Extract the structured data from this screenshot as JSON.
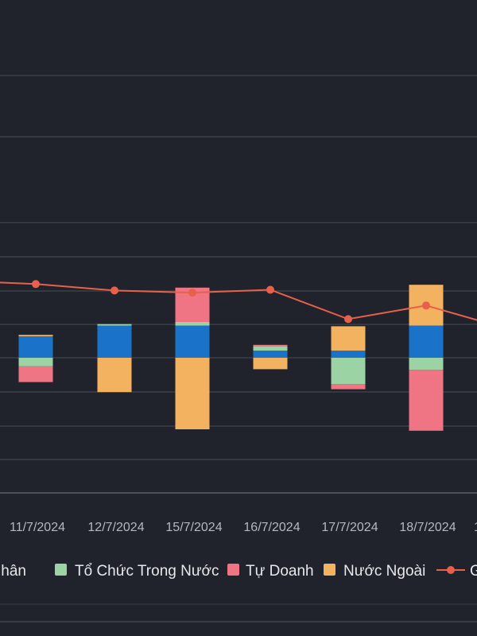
{
  "chart_data": {
    "type": "bar",
    "categories": [
      "11/7/2024",
      "12/7/2024",
      "15/7/2024",
      "16/7/2024",
      "17/7/2024",
      "18/7/2024"
    ],
    "series": [
      {
        "name": "Cá Nhân",
        "color": "#1a73c8",
        "values": [
          30,
          45,
          45,
          10,
          10,
          45
        ]
      },
      {
        "name": "Tổ Chức Trong Nước",
        "color": "#9bd3a5",
        "values": [
          -12,
          2,
          5,
          6,
          -37,
          -17
        ]
      },
      {
        "name": "Tự Doanh",
        "color": "#ef7484",
        "values": [
          -22,
          0,
          48,
          2,
          -7,
          -85
        ]
      },
      {
        "name": "Nước Ngoài",
        "color": "#f2b25f",
        "values": [
          2,
          -48,
          -100,
          -16,
          34,
          57
        ]
      }
    ],
    "line_series": {
      "name_visible": "G",
      "color": "#e8604a",
      "values": [
        103,
        94,
        91,
        95,
        54,
        73
      ]
    },
    "xlabel": "",
    "ylabel": "",
    "legend_position": "bottom",
    "grid": true
  }
}
